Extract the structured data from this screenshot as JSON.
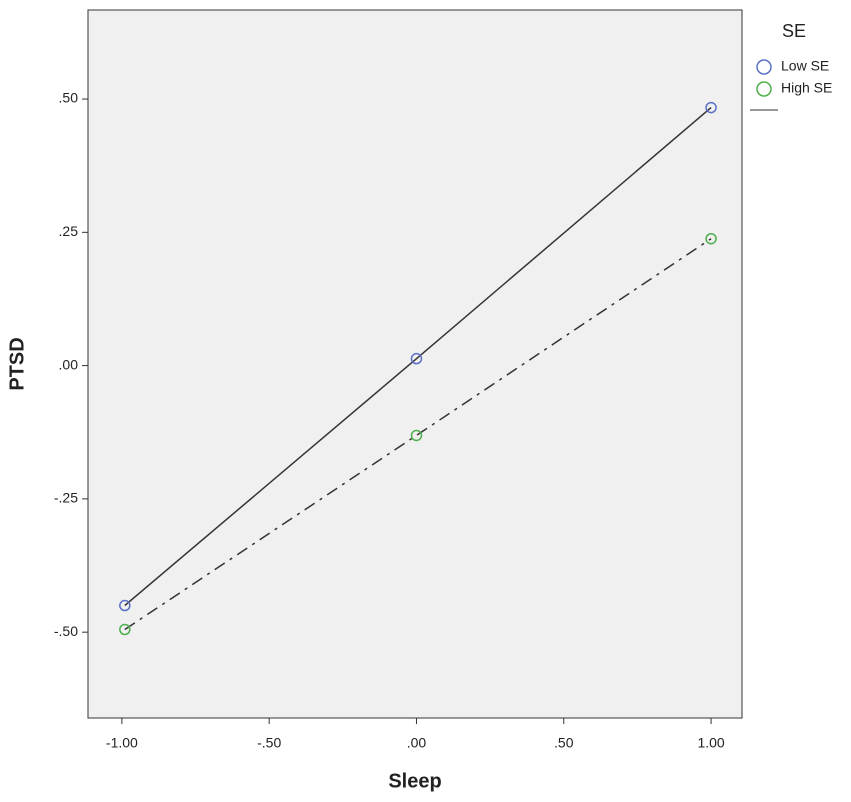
{
  "chart_data": {
    "type": "line",
    "x_label": "Sleep",
    "y_label": "PTSD",
    "x": [
      -0.99,
      0,
      1.0
    ],
    "series": [
      {
        "name": "Low SE",
        "color": "#5b6fc6",
        "line_style": "solid",
        "values": [
          -0.45,
          0.013,
          0.484
        ]
      },
      {
        "name": "High SE",
        "color": "#4db04d",
        "line_style": "dashdot",
        "values": [
          -0.495,
          -0.131,
          0.238
        ]
      }
    ],
    "line_color": "#333333",
    "legend_title": "SE",
    "legend": "right",
    "xlim": [
      -1.115,
      1.105
    ],
    "xticks": [
      {
        "value": -1,
        "label": "-1.00"
      },
      {
        "value": -0.5,
        "label": "-.50"
      },
      {
        "value": 0,
        "label": ".00"
      },
      {
        "value": 0.5,
        "label": ".50"
      },
      {
        "value": 1,
        "label": "1.00"
      }
    ],
    "ylim": [
      -0.661,
      0.667
    ],
    "yticks": [
      {
        "value": -0.5,
        "label": "-.50"
      },
      {
        "value": -0.25,
        "label": "-.25"
      },
      {
        "value": 0,
        "label": ".00"
      },
      {
        "value": 0.25,
        "label": ".25"
      },
      {
        "value": 0.5,
        "label": ".50"
      }
    ]
  }
}
